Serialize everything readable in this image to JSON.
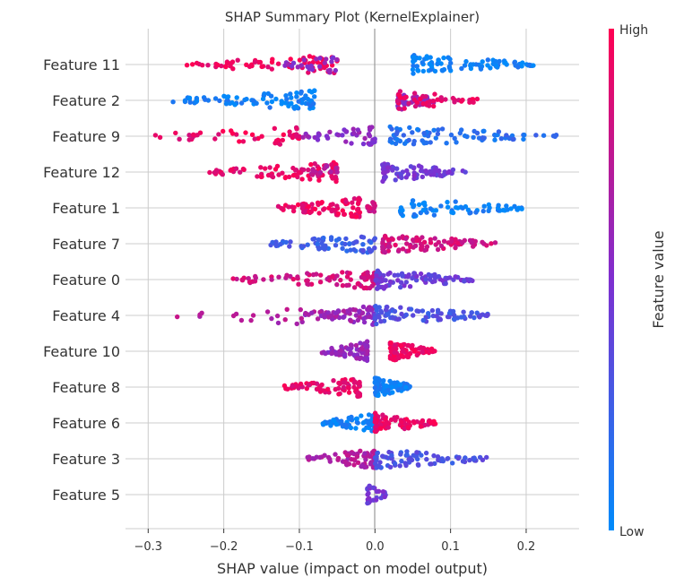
{
  "chart_data": {
    "type": "scatter",
    "subtype": "shap-beeswarm",
    "title": "SHAP Summary Plot (KernelExplainer)",
    "xlabel": "SHAP value (impact on model output)",
    "xlim": [
      -0.33,
      0.27
    ],
    "xticks": [
      -0.3,
      -0.2,
      -0.1,
      0.0,
      0.1,
      0.2
    ],
    "xtick_labels": [
      "−0.3",
      "−0.2",
      "−0.1",
      "0.0",
      "0.1",
      "0.2"
    ],
    "grid": "horizontal per feature + vertical at x ticks",
    "colorbar": {
      "label": "Feature value",
      "high_label": "High",
      "low_label": "Low",
      "low_color": "#008bfb",
      "mid_color": "#7e2fd0",
      "high_color": "#ff0052"
    },
    "features": [
      {
        "name": "Feature 11",
        "clusters": [
          {
            "min": -0.25,
            "max": -0.05,
            "n": 70,
            "v": 0.95
          },
          {
            "min": -0.12,
            "max": -0.05,
            "n": 25,
            "v": 0.55
          },
          {
            "min": 0.05,
            "max": 0.21,
            "n": 95,
            "v": 0.05
          }
        ]
      },
      {
        "name": "Feature 2",
        "clusters": [
          {
            "min": -0.27,
            "max": -0.08,
            "n": 85,
            "v": 0.05
          },
          {
            "min": 0.03,
            "max": 0.08,
            "n": 40,
            "v": 0.6
          },
          {
            "min": 0.03,
            "max": 0.14,
            "n": 45,
            "v": 0.92
          }
        ]
      },
      {
        "name": "Feature 9",
        "clusters": [
          {
            "min": -0.3,
            "max": -0.1,
            "n": 45,
            "v": 0.92
          },
          {
            "min": -0.1,
            "max": 0.0,
            "n": 45,
            "v": 0.55
          },
          {
            "min": 0.02,
            "max": 0.24,
            "n": 80,
            "v": 0.15
          }
        ]
      },
      {
        "name": "Feature 12",
        "clusters": [
          {
            "min": -0.22,
            "max": -0.05,
            "n": 80,
            "v": 0.92
          },
          {
            "min": -0.09,
            "max": -0.05,
            "n": 20,
            "v": 0.72
          },
          {
            "min": 0.01,
            "max": 0.12,
            "n": 75,
            "v": 0.45
          }
        ]
      },
      {
        "name": "Feature 1",
        "clusters": [
          {
            "min": -0.13,
            "max": -0.02,
            "n": 85,
            "v": 0.92
          },
          {
            "min": -0.01,
            "max": 0.0,
            "n": 18,
            "v": 0.8
          },
          {
            "min": 0.03,
            "max": 0.2,
            "n": 65,
            "v": 0.05
          }
        ]
      },
      {
        "name": "Feature 7",
        "clusters": [
          {
            "min": -0.14,
            "max": 0.0,
            "n": 70,
            "v": 0.25
          },
          {
            "min": 0.01,
            "max": 0.16,
            "n": 90,
            "v": 0.82
          }
        ]
      },
      {
        "name": "Feature 0",
        "clusters": [
          {
            "min": -0.2,
            "max": 0.0,
            "n": 80,
            "v": 0.82
          },
          {
            "min": 0.0,
            "max": 0.13,
            "n": 90,
            "v": 0.42
          }
        ]
      },
      {
        "name": "Feature 4",
        "clusters": [
          {
            "min": -0.27,
            "max": -0.08,
            "n": 20,
            "v": 0.7
          },
          {
            "min": -0.1,
            "max": 0.0,
            "n": 70,
            "v": 0.62
          },
          {
            "min": 0.0,
            "max": 0.15,
            "n": 90,
            "v": 0.3
          }
        ]
      },
      {
        "name": "Feature 10",
        "clusters": [
          {
            "min": -0.07,
            "max": -0.01,
            "n": 70,
            "v": 0.6
          },
          {
            "min": 0.02,
            "max": 0.08,
            "n": 80,
            "v": 0.93
          }
        ]
      },
      {
        "name": "Feature 8",
        "clusters": [
          {
            "min": -0.12,
            "max": -0.02,
            "n": 75,
            "v": 0.9
          },
          {
            "min": 0.0,
            "max": 0.05,
            "n": 70,
            "v": 0.05
          }
        ]
      },
      {
        "name": "Feature 6",
        "clusters": [
          {
            "min": -0.07,
            "max": 0.0,
            "n": 70,
            "v": 0.05
          },
          {
            "min": 0.0,
            "max": 0.08,
            "n": 80,
            "v": 0.92
          }
        ]
      },
      {
        "name": "Feature 3",
        "clusters": [
          {
            "min": -0.09,
            "max": 0.0,
            "n": 70,
            "v": 0.7
          },
          {
            "min": 0.0,
            "max": 0.15,
            "n": 80,
            "v": 0.3
          }
        ]
      },
      {
        "name": "Feature 5",
        "clusters": [
          {
            "min": -0.01,
            "max": 0.015,
            "n": 30,
            "v": 0.45
          }
        ]
      }
    ]
  }
}
